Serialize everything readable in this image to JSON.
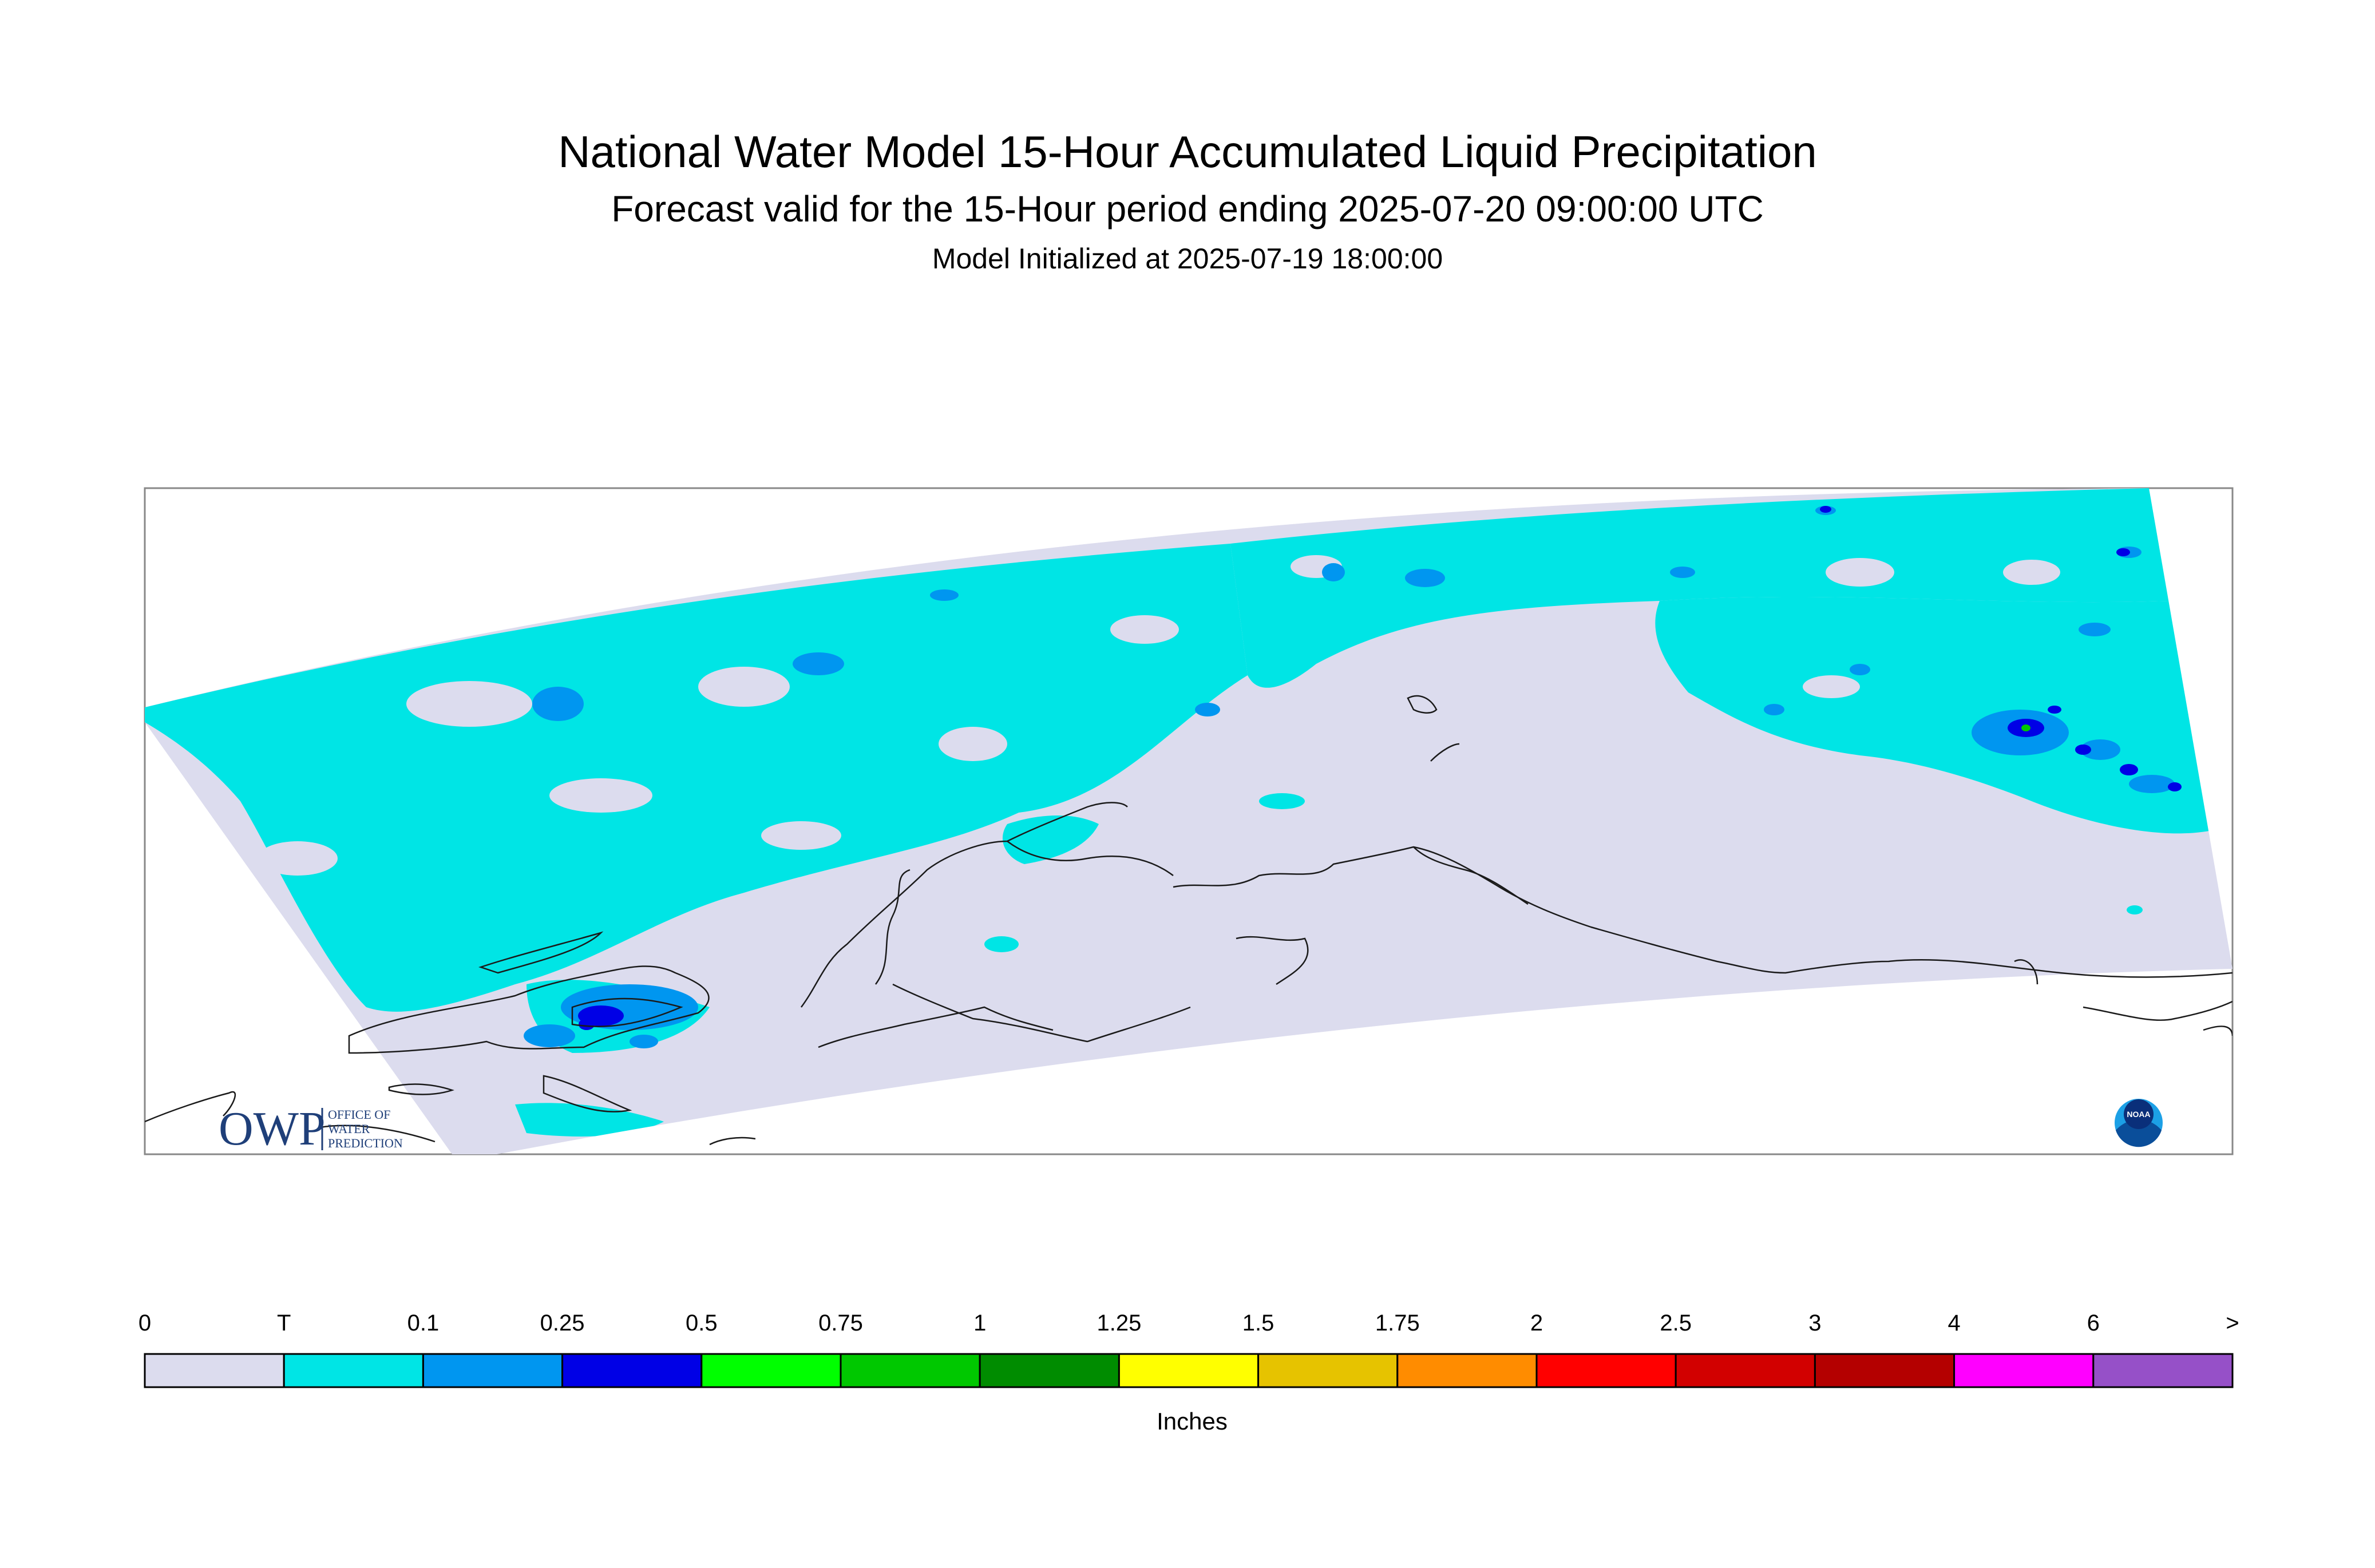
{
  "header": {
    "title": "National Water Model 15-Hour Accumulated Liquid Precipitation",
    "subtitle": "Forecast valid for the 15-Hour period ending 2025-07-20 09:00:00 UTC",
    "init_line": "Model Initialized at 2025-07-19 18:00:00"
  },
  "logos": {
    "owp_mark": "OWP",
    "owp_lines": [
      "OFFICE OF",
      "WATER",
      "PREDICTION"
    ],
    "noaa_text": "NOAA"
  },
  "legend": {
    "units": "Inches",
    "labels": [
      "0",
      "T",
      "0.1",
      "0.25",
      "0.5",
      "0.75",
      "1",
      "1.25",
      "1.5",
      "1.75",
      "2",
      "2.5",
      "3",
      "4",
      "6",
      ">"
    ],
    "colors": [
      "#dcdcee",
      "#00e5e5",
      "#0096f0",
      "#0000e6",
      "#00ff00",
      "#00c800",
      "#008c00",
      "#ffff00",
      "#e6c300",
      "#ff8c00",
      "#ff0000",
      "#d20000",
      "#b40000",
      "#ff00ff",
      "#9650c8"
    ]
  },
  "map": {
    "no_precip_color": "#dcdcee",
    "trace_color": "#00e5e5",
    "light_color": "#0096f0",
    "moderate_color": "#0000e6",
    "green_color": "#00c800",
    "coast_color": "#1a1a1a"
  }
}
